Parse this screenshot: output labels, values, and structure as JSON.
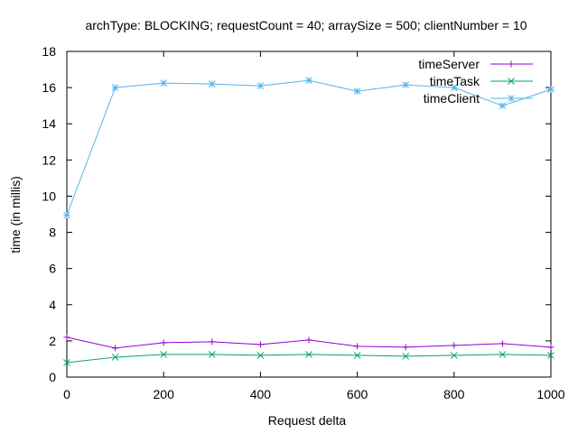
{
  "chart_data": {
    "type": "line",
    "title": "archType: BLOCKING; requestCount = 40; arraySize = 500; clientNumber = 10",
    "xlabel": "Request delta",
    "ylabel": "time (in millis)",
    "xlim": [
      0,
      1000
    ],
    "ylim": [
      0,
      18
    ],
    "xticks": [
      0,
      200,
      400,
      600,
      800,
      1000
    ],
    "yticks": [
      0,
      2,
      4,
      6,
      8,
      10,
      12,
      14,
      16,
      18
    ],
    "grid": false,
    "legend_position": "top-right",
    "x": [
      0,
      100,
      200,
      300,
      400,
      500,
      600,
      700,
      800,
      900,
      1000
    ],
    "series": [
      {
        "name": "timeServer",
        "marker": "plus",
        "color": "#9400d3",
        "values": [
          2.2,
          1.6,
          1.9,
          1.95,
          1.8,
          2.05,
          1.7,
          1.65,
          1.75,
          1.85,
          1.65
        ]
      },
      {
        "name": "timeTask",
        "marker": "cross",
        "color": "#009e73",
        "values": [
          0.8,
          1.1,
          1.25,
          1.25,
          1.2,
          1.25,
          1.2,
          1.15,
          1.2,
          1.25,
          1.2
        ]
      },
      {
        "name": "timeClient",
        "marker": "star",
        "color": "#56b4e9",
        "values": [
          8.95,
          16.0,
          16.25,
          16.2,
          16.1,
          16.4,
          15.8,
          16.15,
          16.0,
          15.0,
          15.9
        ]
      }
    ]
  }
}
